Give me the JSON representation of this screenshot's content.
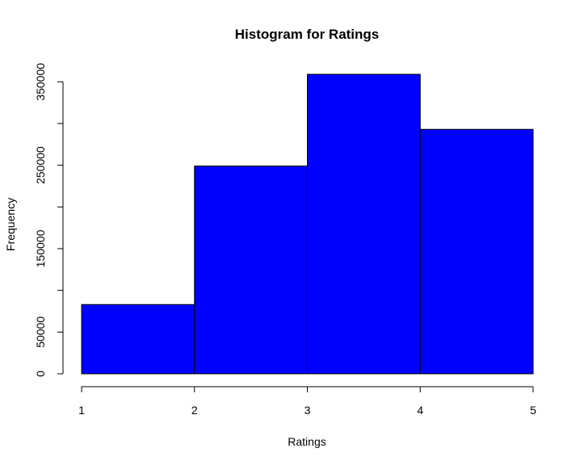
{
  "chart_data": {
    "type": "bar",
    "title": "Histogram for Ratings",
    "xlabel": "Ratings",
    "ylabel": "Frequency",
    "bins": [
      {
        "from": 1,
        "to": 2,
        "value": 83000
      },
      {
        "from": 2,
        "to": 3,
        "value": 249000
      },
      {
        "from": 3,
        "to": 4,
        "value": 359000
      },
      {
        "from": 4,
        "to": 5,
        "value": 293000
      }
    ],
    "x_ticks": [
      1,
      2,
      3,
      4,
      5
    ],
    "y_ticks": [
      0,
      50000,
      150000,
      250000,
      350000
    ],
    "y_minor_ticks": [
      100000,
      200000,
      300000
    ],
    "xlim": [
      1,
      5
    ],
    "ylim": [
      0,
      360000
    ],
    "bar_color": "#0000ff",
    "grid": false,
    "legend": "none"
  }
}
